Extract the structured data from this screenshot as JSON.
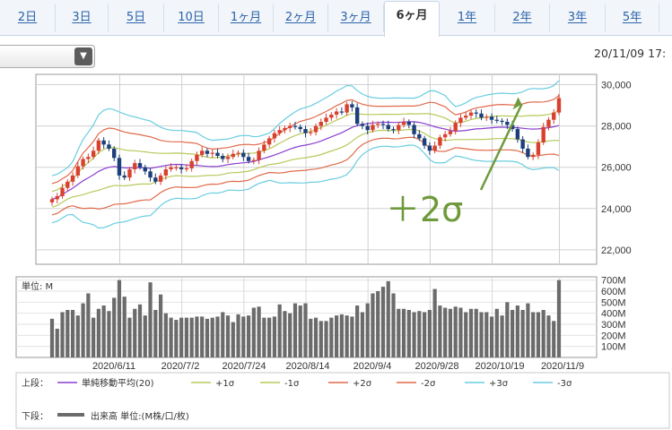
{
  "tabs": [
    {
      "label": "2日",
      "active": false
    },
    {
      "label": "3日",
      "active": false
    },
    {
      "label": "5日",
      "active": false
    },
    {
      "label": "10日",
      "active": false
    },
    {
      "label": "1ヶ月",
      "active": false
    },
    {
      "label": "2ヶ月",
      "active": false
    },
    {
      "label": "3ヶ月",
      "active": false
    },
    {
      "label": "6ヶ月",
      "active": true
    },
    {
      "label": "1年",
      "active": false
    },
    {
      "label": "2年",
      "active": false
    },
    {
      "label": "3年",
      "active": false
    },
    {
      "label": "5年",
      "active": false
    }
  ],
  "datetime": "20/11/09 17:",
  "dropdown": {
    "value": ""
  },
  "annotation": "＋2σ",
  "colors": {
    "up": "#d9412f",
    "down": "#1c3f7a",
    "sma": "#8b3fd1",
    "sigma1": "#b7c95a",
    "sigma2": "#e06a4a",
    "sigma3": "#68cde0",
    "volume": "#6b6b6b",
    "annotation": "#6e9a3c",
    "tab_link": "#2a62a8"
  },
  "legend": {
    "upper_label": "上段：",
    "lower_label": "下段：",
    "items": [
      {
        "name": "単純移動平均(20)",
        "color": "#8b3fd1"
      },
      {
        "name": "+1σ",
        "color": "#b7c95a"
      },
      {
        "name": "-1σ",
        "color": "#b7c95a"
      },
      {
        "name": "+2σ",
        "color": "#e06a4a"
      },
      {
        "name": "-2σ",
        "color": "#e06a4a"
      },
      {
        "name": "+3σ",
        "color": "#68cde0"
      },
      {
        "name": "-3σ",
        "color": "#68cde0"
      }
    ],
    "volume_item": "出来高 単位:(M株/口/枚)"
  },
  "chart_data": [
    {
      "type": "candlestick",
      "title": "",
      "y_ticks": [
        "30,000",
        "28,000",
        "26,000",
        "24,000",
        "22,000"
      ],
      "ylim": [
        21300,
        30500
      ],
      "x_ticks": [
        "2020/6/11",
        "2020/7/2",
        "2020/7/24",
        "2020/8/14",
        "2020/9/4",
        "2020/9/28",
        "2020/10/19",
        "2020/11/9"
      ],
      "overlays": [
        "単純移動平均(20)",
        "+1σ",
        "-1σ",
        "+2σ",
        "-2σ",
        "+3σ",
        "-3σ"
      ],
      "close": [
        24450,
        24600,
        25000,
        25300,
        25600,
        26050,
        26400,
        26500,
        26800,
        27300,
        27100,
        26900,
        26450,
        25600,
        25500,
        25900,
        26200,
        26000,
        25800,
        25500,
        25300,
        25600,
        25900,
        26000,
        26000,
        25900,
        25950,
        26300,
        26600,
        26800,
        26650,
        26700,
        26550,
        26400,
        26500,
        26650,
        26700,
        26500,
        26300,
        26350,
        26800,
        27100,
        27400,
        27650,
        27800,
        27900,
        28000,
        27950,
        27850,
        27650,
        27700,
        28000,
        28200,
        28400,
        28550,
        28700,
        28650,
        29050,
        28900,
        28100,
        28000,
        27800,
        28050,
        28100,
        28050,
        27850,
        27800,
        28050,
        28200,
        28050,
        27600,
        27400,
        27050,
        26800,
        27050,
        27450,
        27600,
        27750,
        28150,
        28400,
        28500,
        28650,
        28600,
        28400,
        28450,
        28300,
        28250,
        28200,
        28050,
        27850,
        27350,
        26900,
        26500,
        26600,
        27200,
        27950,
        28300,
        28650,
        29350
      ],
      "volume": [
        350,
        260,
        410,
        430,
        430,
        380,
        490,
        580,
        360,
        440,
        470,
        420,
        540,
        700,
        550,
        360,
        440,
        480,
        380,
        680,
        430,
        570,
        400,
        360,
        340,
        360,
        360,
        360,
        370,
        370,
        350,
        360,
        370,
        410,
        380,
        320,
        390,
        370,
        380,
        450,
        460,
        360,
        360,
        370,
        480,
        420,
        400,
        490,
        470,
        490,
        350,
        360,
        330,
        330,
        360,
        380,
        390,
        380,
        370,
        470,
        410,
        490,
        580,
        600,
        640,
        690,
        580,
        440,
        440,
        430,
        410,
        420,
        410,
        430,
        620,
        470,
        450,
        440,
        460,
        450,
        410,
        440,
        440,
        410,
        410,
        370,
        440,
        380,
        500,
        430,
        470,
        430,
        490,
        410,
        410,
        430,
        380,
        330,
        700
      ],
      "volume_axis": {
        "unit_label": "単位: M",
        "ticks": [
          "700M",
          "600M",
          "500M",
          "400M",
          "300M",
          "200M",
          "100M"
        ],
        "ylim": [
          0,
          730
        ]
      }
    }
  ]
}
